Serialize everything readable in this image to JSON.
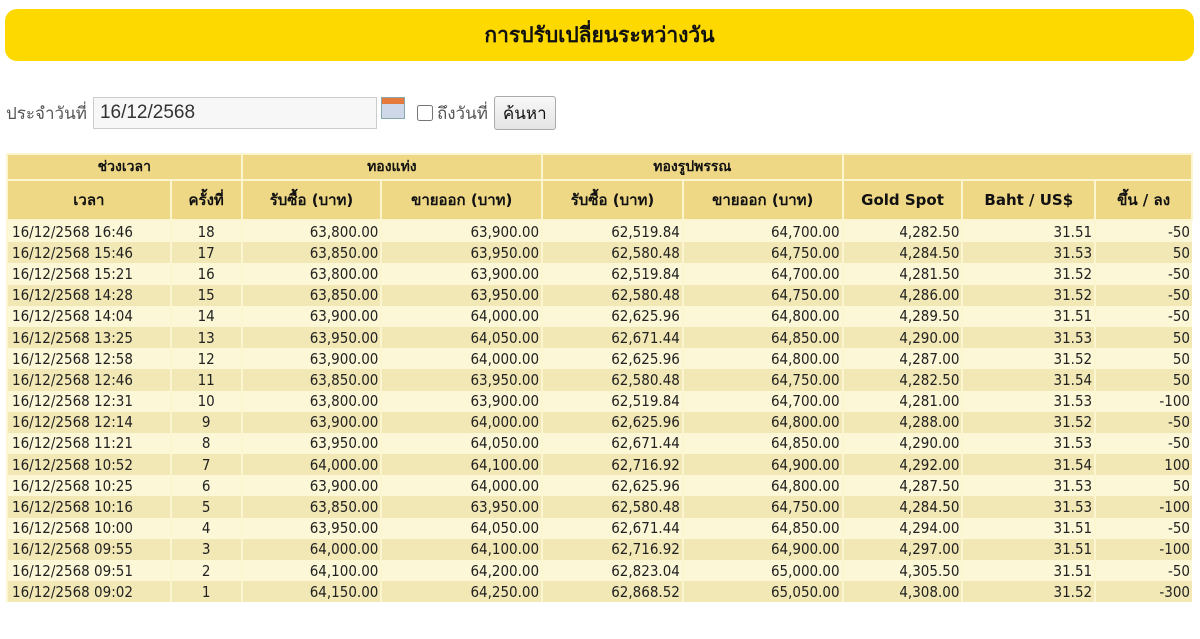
{
  "title": "การปรับเปลี่ยนระหว่างวัน",
  "search": {
    "date_label": "ประจำวันที่",
    "date_value": "16/12/2568",
    "to_date_label": "ถึงวันที่",
    "to_date_checked": false,
    "search_button": "ค้นหา",
    "calendar_icon": "calendar-icon"
  },
  "table": {
    "group_headers": [
      "ช่วงเวลา",
      "ทองแท่ง",
      "ทองรูปพรรณ",
      ""
    ],
    "headers": [
      "เวลา",
      "ครั้งที่",
      "รับซื้อ (บาท)",
      "ขายออก (บาท)",
      "รับซื้อ (บาท)",
      "ขายออก (บาท)",
      "Gold Spot",
      "Baht / US$",
      "ขึ้น / ลง"
    ],
    "rows": [
      [
        "16/12/2568 16:46",
        "18",
        "63,800.00",
        "63,900.00",
        "62,519.84",
        "64,700.00",
        "4,282.50",
        "31.51",
        "-50"
      ],
      [
        "16/12/2568 15:46",
        "17",
        "63,850.00",
        "63,950.00",
        "62,580.48",
        "64,750.00",
        "4,284.50",
        "31.53",
        "50"
      ],
      [
        "16/12/2568 15:21",
        "16",
        "63,800.00",
        "63,900.00",
        "62,519.84",
        "64,700.00",
        "4,281.50",
        "31.52",
        "-50"
      ],
      [
        "16/12/2568 14:28",
        "15",
        "63,850.00",
        "63,950.00",
        "62,580.48",
        "64,750.00",
        "4,286.00",
        "31.52",
        "-50"
      ],
      [
        "16/12/2568 14:04",
        "14",
        "63,900.00",
        "64,000.00",
        "62,625.96",
        "64,800.00",
        "4,289.50",
        "31.51",
        "-50"
      ],
      [
        "16/12/2568 13:25",
        "13",
        "63,950.00",
        "64,050.00",
        "62,671.44",
        "64,850.00",
        "4,290.00",
        "31.53",
        "50"
      ],
      [
        "16/12/2568 12:58",
        "12",
        "63,900.00",
        "64,000.00",
        "62,625.96",
        "64,800.00",
        "4,287.00",
        "31.52",
        "50"
      ],
      [
        "16/12/2568 12:46",
        "11",
        "63,850.00",
        "63,950.00",
        "62,580.48",
        "64,750.00",
        "4,282.50",
        "31.54",
        "50"
      ],
      [
        "16/12/2568 12:31",
        "10",
        "63,800.00",
        "63,900.00",
        "62,519.84",
        "64,700.00",
        "4,281.00",
        "31.53",
        "-100"
      ],
      [
        "16/12/2568 12:14",
        "9",
        "63,900.00",
        "64,000.00",
        "62,625.96",
        "64,800.00",
        "4,288.00",
        "31.52",
        "-50"
      ],
      [
        "16/12/2568 11:21",
        "8",
        "63,950.00",
        "64,050.00",
        "62,671.44",
        "64,850.00",
        "4,290.00",
        "31.53",
        "-50"
      ],
      [
        "16/12/2568 10:52",
        "7",
        "64,000.00",
        "64,100.00",
        "62,716.92",
        "64,900.00",
        "4,292.00",
        "31.54",
        "100"
      ],
      [
        "16/12/2568 10:25",
        "6",
        "63,900.00",
        "64,000.00",
        "62,625.96",
        "64,800.00",
        "4,287.50",
        "31.53",
        "50"
      ],
      [
        "16/12/2568 10:16",
        "5",
        "63,850.00",
        "63,950.00",
        "62,580.48",
        "64,750.00",
        "4,284.50",
        "31.53",
        "-100"
      ],
      [
        "16/12/2568 10:00",
        "4",
        "63,950.00",
        "64,050.00",
        "62,671.44",
        "64,850.00",
        "4,294.00",
        "31.51",
        "-50"
      ],
      [
        "16/12/2568 09:55",
        "3",
        "64,000.00",
        "64,100.00",
        "62,716.92",
        "64,900.00",
        "4,297.00",
        "31.51",
        "-100"
      ],
      [
        "16/12/2568 09:51",
        "2",
        "64,100.00",
        "64,200.00",
        "62,823.04",
        "65,000.00",
        "4,305.50",
        "31.51",
        "-50"
      ],
      [
        "16/12/2568 09:02",
        "1",
        "64,150.00",
        "64,250.00",
        "62,868.52",
        "65,050.00",
        "4,308.00",
        "31.52",
        "-300"
      ]
    ]
  },
  "colors": {
    "title_bg": "#fdd900",
    "header_bg": "#eed886",
    "row_light": "#fcf8d7",
    "row_dark": "#f2e8b5"
  }
}
